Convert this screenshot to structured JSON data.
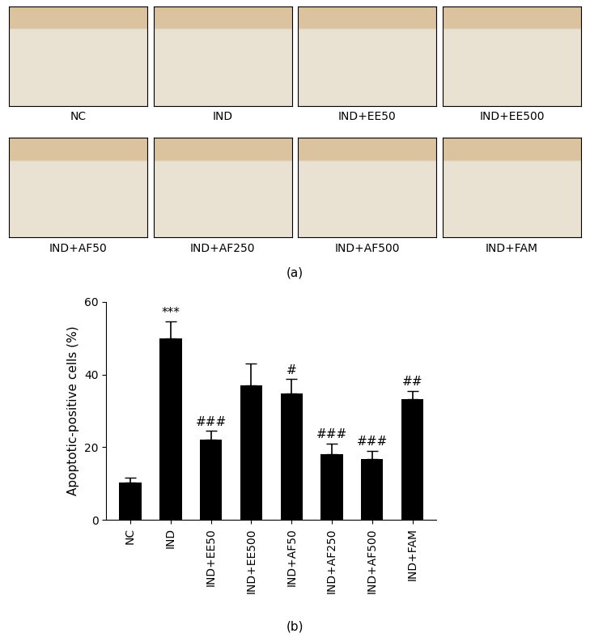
{
  "image_panels": {
    "label": "(a)",
    "images": [
      "NC",
      "IND",
      "IND+EE50",
      "IND+EE500",
      "IND+AF50",
      "IND+AF250",
      "IND+AF500",
      "IND+FAM"
    ]
  },
  "chart_data": {
    "type": "bar",
    "label": "(b)",
    "y_label": "Apoptotic-positive cells (%)",
    "categories": [
      "NC",
      "IND",
      "IND+EE50",
      "IND+EE500",
      "IND+AF50",
      "IND+AF250",
      "IND+AF500",
      "IND+FAM"
    ],
    "values": [
      10.2,
      50.0,
      22.0,
      37.0,
      34.7,
      18.0,
      16.7,
      33.2
    ],
    "errors": [
      1.5,
      4.5,
      2.5,
      6.0,
      4.0,
      3.0,
      2.3,
      2.3
    ],
    "significance": [
      null,
      "***",
      "###",
      null,
      "#",
      "###",
      "###",
      "##"
    ],
    "color": "#000000",
    "ylim": [
      0,
      60
    ],
    "yticks": [
      0,
      20,
      40,
      60
    ],
    "grid": false
  }
}
